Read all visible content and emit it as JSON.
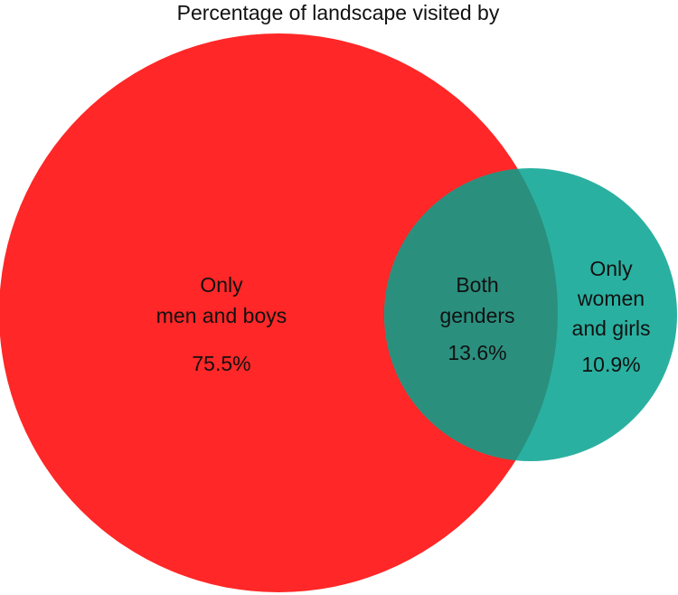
{
  "title": "Percentage of landscape visited by",
  "colors": {
    "men_circle": "#FF2727",
    "women_circle": "#2AB0A0",
    "overlap": "#2B8F7E"
  },
  "regions": {
    "men_only": {
      "line1": "Only",
      "line2": "men and boys",
      "value": "75.5%"
    },
    "both": {
      "line1": "Both",
      "line2": "genders",
      "value": "13.6%"
    },
    "women_only": {
      "line1": "Only",
      "line2": "women",
      "line3": "and girls",
      "value": "10.9%"
    }
  }
}
